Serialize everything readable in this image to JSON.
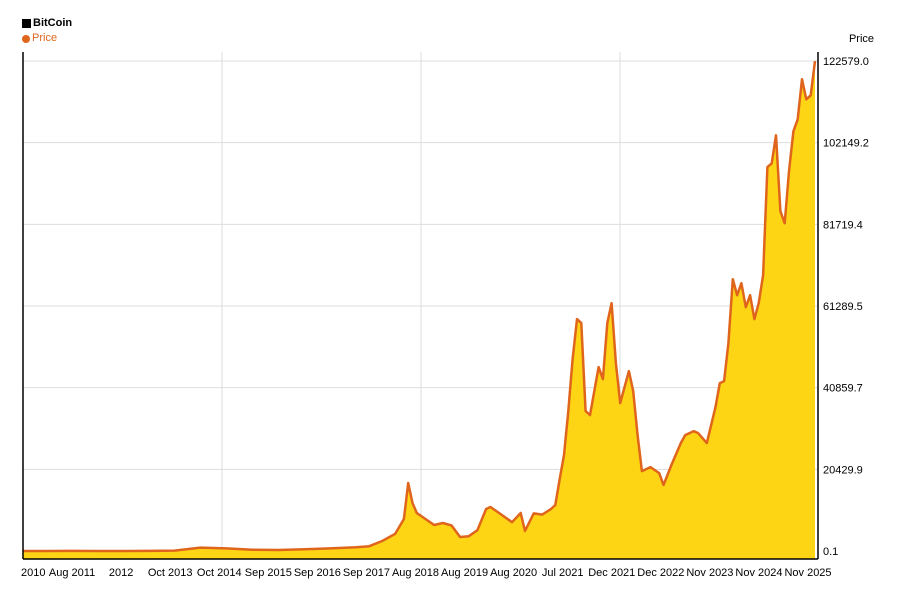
{
  "chart_data": {
    "type": "area",
    "title": "BitCoin",
    "ylabel": "Price",
    "legend": [
      {
        "label": "BitCoin",
        "color": "#000000",
        "marker": "square"
      },
      {
        "label": "Price",
        "color": "#E0651C",
        "marker": "dot"
      }
    ],
    "x_ticks": [
      "2010",
      "Aug 2011",
      "2012",
      "Oct 2013",
      "Oct 2014",
      "Sep 2015",
      "Sep 2016",
      "Sep 2017",
      "Aug 2018",
      "Aug 2019",
      "Aug 2020",
      "Jul 2021",
      "Dec 2021",
      "Dec 2022",
      "Nov 2023",
      "Nov 2024",
      "Nov 2025"
    ],
    "y_ticks": [
      "0.1",
      "20429.9",
      "40859.7",
      "61289.5",
      "81719.4",
      "102149.2",
      "122579.0"
    ],
    "ylim": [
      0.1,
      122579.0
    ],
    "x_range": [
      "2010-07",
      "2025-10"
    ],
    "grid": true,
    "line_color": "#E0651C",
    "fill_color": "#FDD515",
    "series": [
      {
        "name": "Price",
        "x": [
          "2010-07",
          "2011-01",
          "2011-06",
          "2011-12",
          "2012-06",
          "2012-12",
          "2013-06",
          "2013-12",
          "2014-06",
          "2014-12",
          "2015-06",
          "2015-12",
          "2016-06",
          "2016-12",
          "2017-03",
          "2017-06",
          "2017-09",
          "2017-11",
          "2017-12",
          "2018-01",
          "2018-02",
          "2018-04",
          "2018-06",
          "2018-08",
          "2018-10",
          "2018-12",
          "2019-02",
          "2019-04",
          "2019-06",
          "2019-07",
          "2019-09",
          "2019-12",
          "2020-02",
          "2020-03",
          "2020-05",
          "2020-07",
          "2020-09",
          "2020-10",
          "2020-11",
          "2020-12",
          "2021-01",
          "2021-02",
          "2021-03",
          "2021-04",
          "2021-05",
          "2021-06",
          "2021-07",
          "2021-08",
          "2021-09",
          "2021-10",
          "2021-11",
          "2021-12",
          "2022-01",
          "2022-03",
          "2022-04",
          "2022-05",
          "2022-06",
          "2022-08",
          "2022-10",
          "2022-11",
          "2023-01",
          "2023-03",
          "2023-04",
          "2023-06",
          "2023-07",
          "2023-09",
          "2023-11",
          "2023-12",
          "2024-01",
          "2024-02",
          "2024-03",
          "2024-04",
          "2024-05",
          "2024-06",
          "2024-07",
          "2024-08",
          "2024-09",
          "2024-10",
          "2024-11",
          "2024-12",
          "2025-01",
          "2025-02",
          "2025-03",
          "2025-04",
          "2025-05",
          "2025-06",
          "2025-07",
          "2025-08",
          "2025-09",
          "2025-10"
        ],
        "values": [
          0.1,
          0.3,
          20,
          3,
          6,
          13,
          100,
          850,
          640,
          320,
          250,
          430,
          650,
          960,
          1200,
          2500,
          4300,
          8000,
          17000,
          12000,
          9500,
          8000,
          6500,
          7000,
          6400,
          3500,
          3700,
          5200,
          10500,
          11000,
          9500,
          7200,
          9500,
          5000,
          9400,
          9100,
          10500,
          11500,
          18000,
          24000,
          35000,
          48000,
          58000,
          57000,
          35000,
          34000,
          40000,
          46000,
          43000,
          57000,
          62000,
          47000,
          37000,
          45000,
          40000,
          29000,
          20000,
          21000,
          19500,
          16500,
          22000,
          27000,
          29000,
          30000,
          29500,
          27000,
          36000,
          42000,
          42500,
          52000,
          68000,
          64000,
          67000,
          61000,
          64000,
          58000,
          62000,
          69000,
          96000,
          97000,
          104000,
          85000,
          82000,
          95000,
          105000,
          108000,
          118000,
          113000,
          114000,
          122579
        ]
      }
    ]
  }
}
